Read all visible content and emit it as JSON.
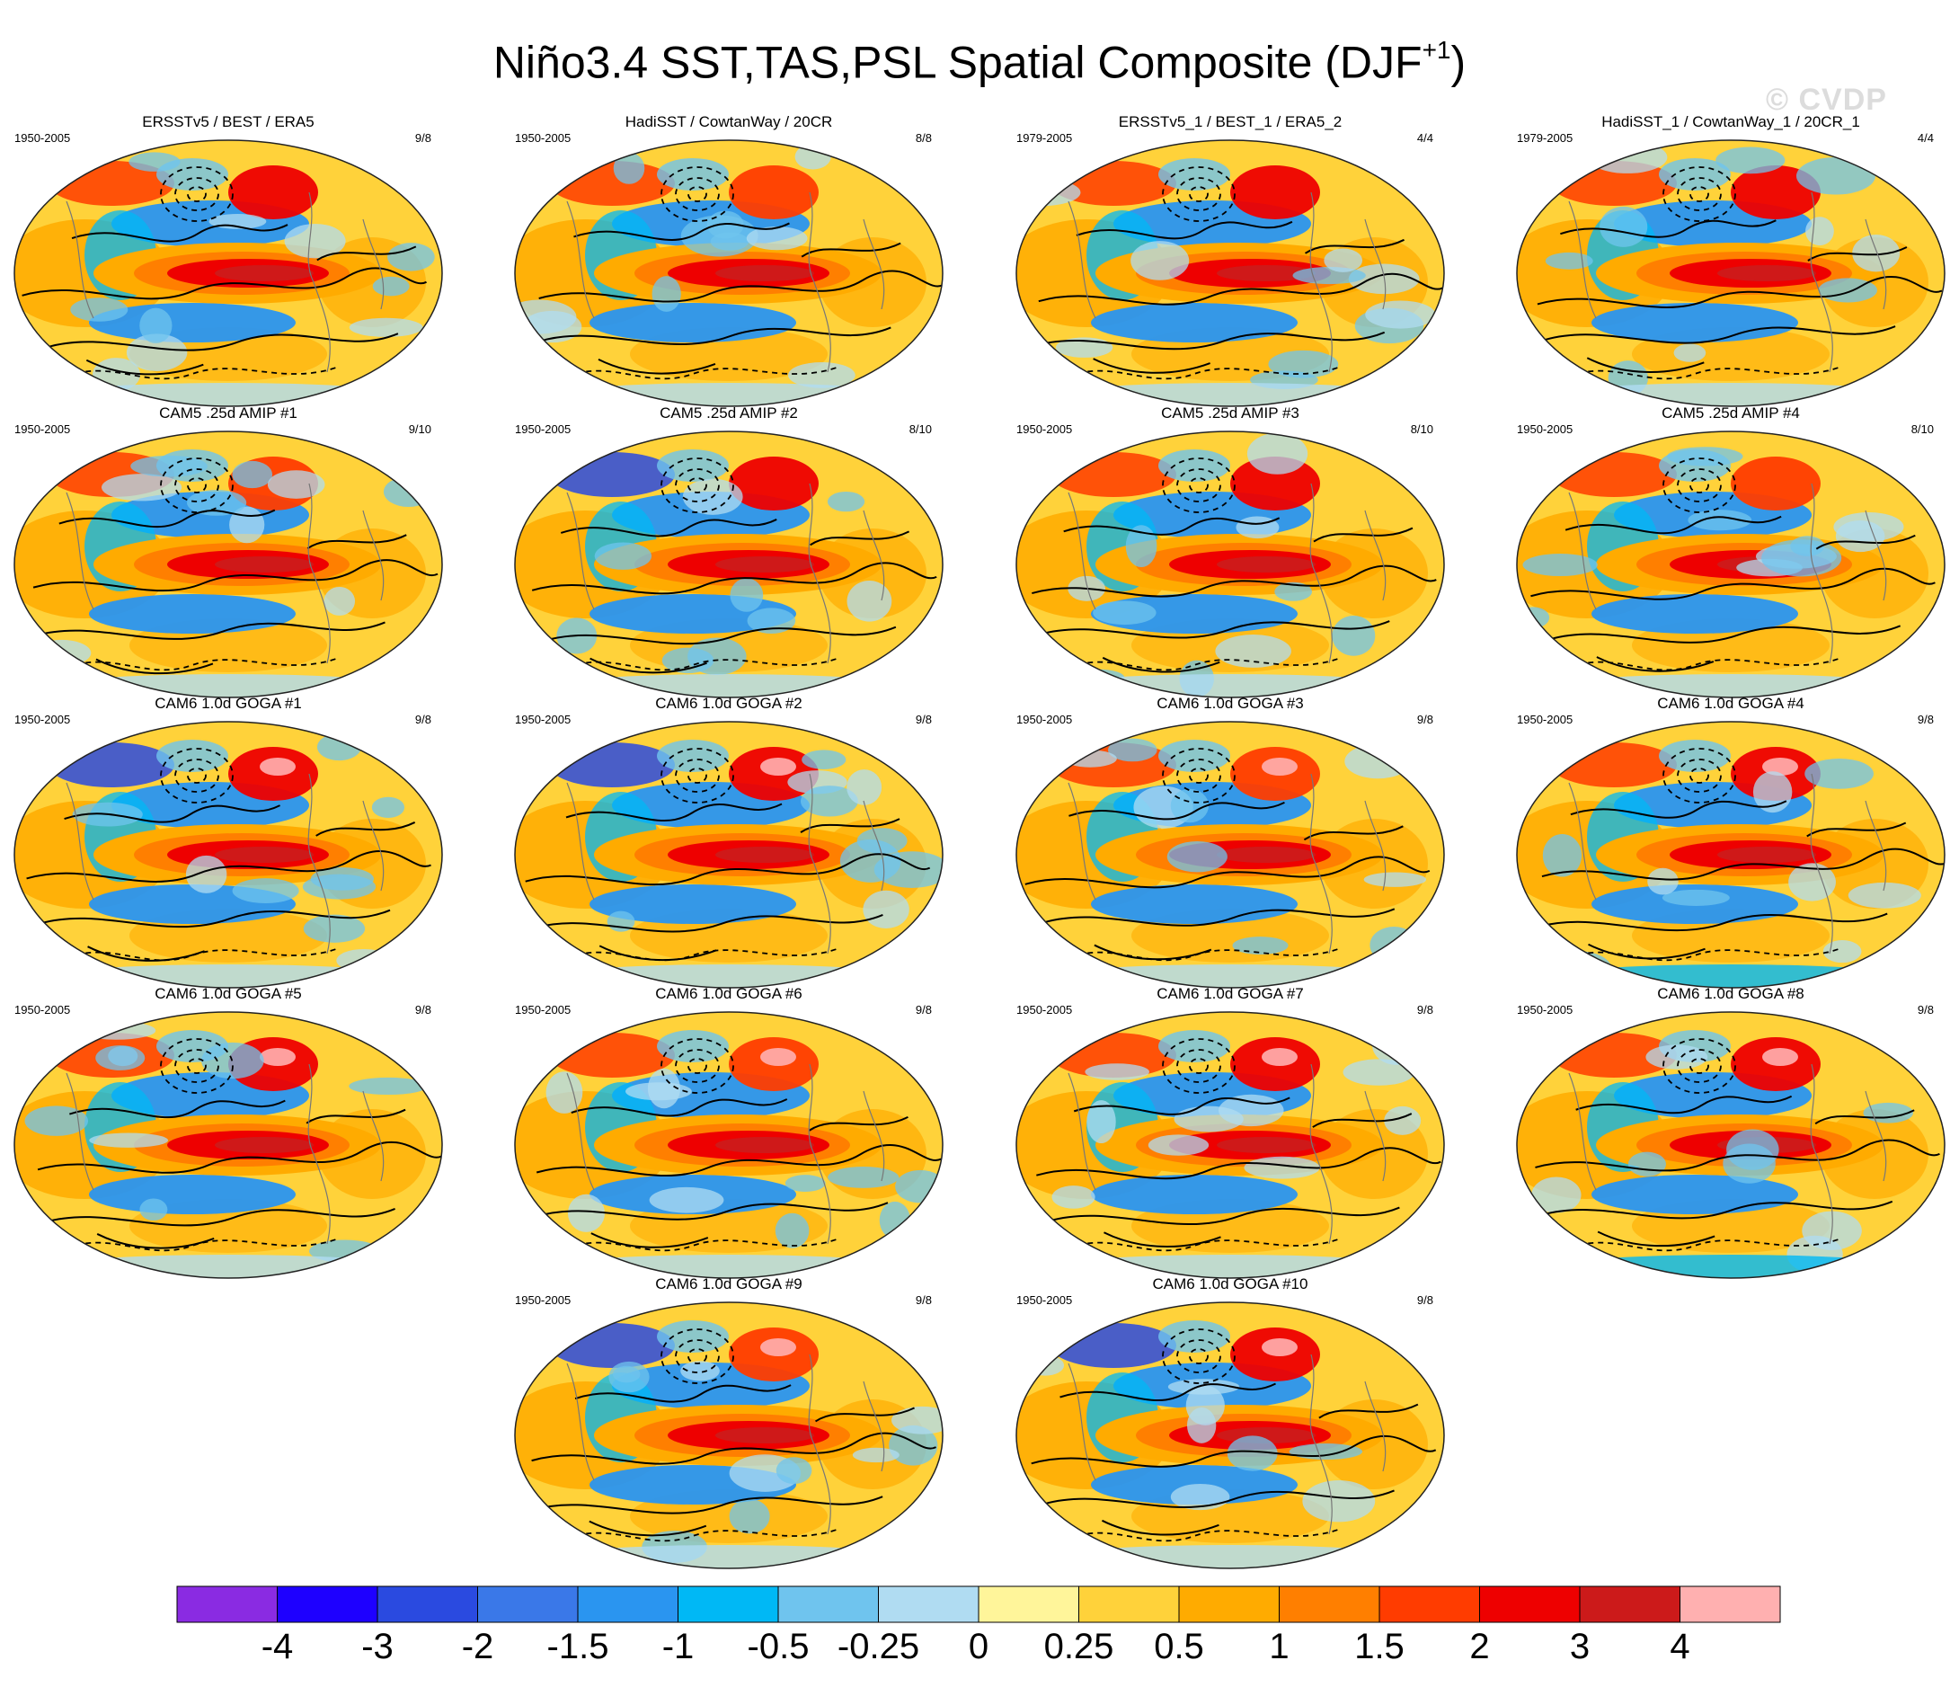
{
  "title": "Niño3.4 SST,TAS,PSL Spatial Composite (DJF",
  "title_superscript": "+1",
  "title_suffix": ")",
  "watermark": "© CVDP",
  "panels": [
    {
      "title": "ERSSTv5 / BEST / ERA5",
      "years": "1950-2005",
      "count": "9/8",
      "row": 0,
      "col": 0,
      "variant": 0
    },
    {
      "title": "HadiSST / CowtanWay / 20CR",
      "years": "1950-2005",
      "count": "8/8",
      "row": 0,
      "col": 1,
      "variant": 1
    },
    {
      "title": "ERSSTv5_1 / BEST_1 / ERA5_2",
      "years": "1979-2005",
      "count": "4/4",
      "row": 0,
      "col": 2,
      "variant": 2
    },
    {
      "title": "HadiSST_1 / CowtanWay_1 / 20CR_1",
      "years": "1979-2005",
      "count": "4/4",
      "row": 0,
      "col": 3,
      "variant": 3
    },
    {
      "title": "CAM5 .25d AMIP #1",
      "years": "1950-2005",
      "count": "9/10",
      "row": 1,
      "col": 0,
      "variant": 4
    },
    {
      "title": "CAM5 .25d AMIP #2",
      "years": "1950-2005",
      "count": "8/10",
      "row": 1,
      "col": 1,
      "variant": 5
    },
    {
      "title": "CAM5 .25d AMIP #3",
      "years": "1950-2005",
      "count": "8/10",
      "row": 1,
      "col": 2,
      "variant": 6
    },
    {
      "title": "CAM5 .25d AMIP #4",
      "years": "1950-2005",
      "count": "8/10",
      "row": 1,
      "col": 3,
      "variant": 7
    },
    {
      "title": "CAM6 1.0d GOGA #1",
      "years": "1950-2005",
      "count": "9/8",
      "row": 2,
      "col": 0,
      "variant": 8
    },
    {
      "title": "CAM6 1.0d GOGA #2",
      "years": "1950-2005",
      "count": "9/8",
      "row": 2,
      "col": 1,
      "variant": 9
    },
    {
      "title": "CAM6 1.0d GOGA #3",
      "years": "1950-2005",
      "count": "9/8",
      "row": 2,
      "col": 2,
      "variant": 10
    },
    {
      "title": "CAM6 1.0d GOGA #4",
      "years": "1950-2005",
      "count": "9/8",
      "row": 2,
      "col": 3,
      "variant": 11
    },
    {
      "title": "CAM6 1.0d GOGA #5",
      "years": "1950-2005",
      "count": "9/8",
      "row": 3,
      "col": 0,
      "variant": 12
    },
    {
      "title": "CAM6 1.0d GOGA #6",
      "years": "1950-2005",
      "count": "9/8",
      "row": 3,
      "col": 1,
      "variant": 13
    },
    {
      "title": "CAM6 1.0d GOGA #7",
      "years": "1950-2005",
      "count": "9/8",
      "row": 3,
      "col": 2,
      "variant": 14
    },
    {
      "title": "CAM6 1.0d GOGA #8",
      "years": "1950-2005",
      "count": "9/8",
      "row": 3,
      "col": 3,
      "variant": 15
    },
    {
      "title": "CAM6 1.0d GOGA #9",
      "years": "1950-2005",
      "count": "9/8",
      "row": 4,
      "col": 1,
      "variant": 16
    },
    {
      "title": "CAM6 1.0d GOGA #10",
      "years": "1950-2005",
      "count": "9/8",
      "row": 4,
      "col": 2,
      "variant": 17
    }
  ],
  "colorbar": {
    "colors": [
      "#8a2be2",
      "#1e00ff",
      "#2a4ae0",
      "#3a78e8",
      "#2a95f0",
      "#00b8f5",
      "#6fc4ee",
      "#b0dcf2",
      "#fff59a",
      "#ffd23a",
      "#ffab00",
      "#ff7f00",
      "#ff3c00",
      "#ee0000",
      "#cc1a1a",
      "#ffb0b0"
    ],
    "labels": [
      "-4",
      "-3",
      "-2",
      "-1.5",
      "-1",
      "-0.5",
      "-0.25",
      "0",
      "0.25",
      "0.5",
      "1",
      "1.5",
      "2",
      "3",
      "4"
    ]
  }
}
